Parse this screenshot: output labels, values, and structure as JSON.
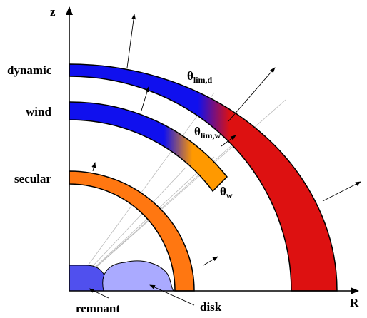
{
  "axes": {
    "z": "z",
    "R": "R"
  },
  "regions": {
    "dynamic": "dynamic",
    "wind": "wind",
    "secular": "secular",
    "remnant": "remnant",
    "disk": "disk"
  },
  "angles": [
    {
      "symbol": "θ",
      "subscript": "lim,d"
    },
    {
      "symbol": "θ",
      "subscript": "lim,w"
    },
    {
      "symbol": "θ",
      "subscript": "w"
    }
  ]
}
